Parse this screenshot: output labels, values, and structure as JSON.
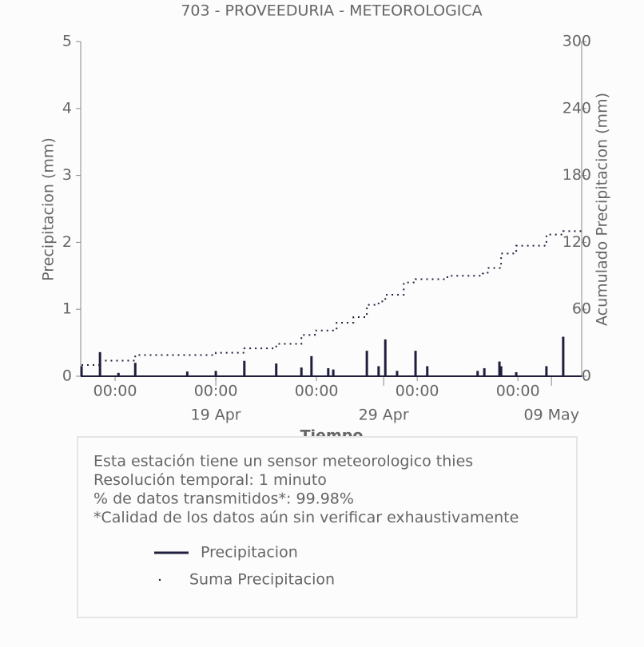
{
  "chart_data": {
    "type": "combo",
    "title": "703 - PROVEEDURIA - METEOROLOGICA",
    "xlabel": "Tiempo",
    "ylabel": "Precipitacion (mm)",
    "y2label": "Acumulado Precipitacion (mm)",
    "xlim": [
      -8.05,
      21.8
    ],
    "xticks": [
      {
        "value": -6,
        "label": "00:00"
      },
      {
        "value": 0,
        "label": "00:00"
      },
      {
        "value": 6,
        "label": "00:00"
      },
      {
        "value": 12,
        "label": "00:00"
      },
      {
        "value": 18,
        "label": "00:00"
      }
    ],
    "xticks_major": [
      {
        "value": 0,
        "label": "19 Apr"
      },
      {
        "value": 10,
        "label": "29 Apr"
      },
      {
        "value": 20,
        "label": "09 May"
      }
    ],
    "ylim": [
      0,
      5
    ],
    "yticks": [
      0,
      1,
      2,
      3,
      4,
      5
    ],
    "y2lim": [
      0,
      300
    ],
    "y2ticks": [
      0,
      60,
      120,
      180,
      240,
      300
    ],
    "series": [
      {
        "name": "Precipitacion",
        "type": "bar",
        "color": "#1f1f3d",
        "x": [
          -8.0,
          -6.9,
          -5.8,
          -4.8,
          -1.7,
          0,
          1.7,
          3.6,
          5.1,
          5.7,
          6.7,
          7.0,
          9.0,
          9.7,
          10.1,
          10.8,
          11.9,
          12.6,
          15.6,
          16.0,
          16.9,
          17.0,
          17.9,
          19.7,
          20.7
        ],
        "values": [
          0.15,
          0.36,
          0.05,
          0.2,
          0.07,
          0.08,
          0.23,
          0.19,
          0.13,
          0.3,
          0.12,
          0.1,
          0.38,
          0.15,
          0.55,
          0.08,
          0.38,
          0.15,
          0.08,
          0.12,
          0.22,
          0.15,
          0.06,
          0.15,
          0.59
        ]
      },
      {
        "name": "Suma Precipitacion",
        "type": "step",
        "axis": "y2",
        "color": "#1f1f3d",
        "x": [
          -8.0,
          -6.9,
          -4.8,
          0,
          1.7,
          3.6,
          5.1,
          5.9,
          7.2,
          8.2,
          9.0,
          9.7,
          10.1,
          11.2,
          11.9,
          13.8,
          15.9,
          16.2,
          17.0,
          17.9,
          19.7,
          20.7,
          21.8
        ],
        "values": [
          10,
          14,
          19,
          21,
          25,
          29,
          37,
          41,
          48,
          53,
          64,
          67,
          73,
          84,
          87,
          90,
          92,
          97,
          110,
          117,
          127,
          130,
          130
        ]
      }
    ],
    "annotations": [
      "Esta estación tiene un sensor meteorologico thies",
      "Resolución temporal: 1 minuto",
      "% de datos transmitidos*: 99.98%",
      "*Calidad de los datos aún sin verificar exhaustivamente"
    ]
  }
}
